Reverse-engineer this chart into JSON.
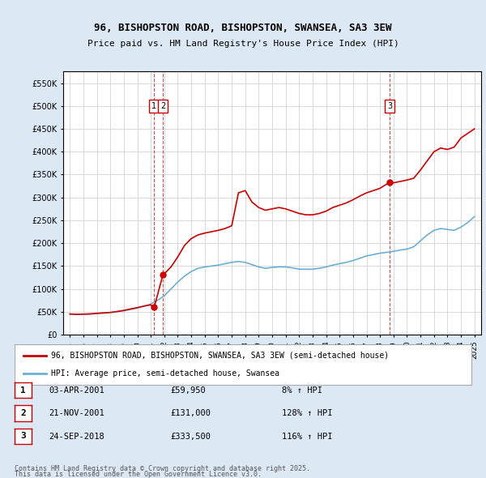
{
  "title_line1": "96, BISHOPSTON ROAD, BISHOPSTON, SWANSEA, SA3 3EW",
  "title_line2": "Price paid vs. HM Land Registry's House Price Index (HPI)",
  "legend_line1": "96, BISHOPSTON ROAD, BISHOPSTON, SWANSEA, SA3 3EW (semi-detached house)",
  "legend_line2": "HPI: Average price, semi-detached house, Swansea",
  "footer_line1": "Contains HM Land Registry data © Crown copyright and database right 2025.",
  "footer_line2": "This data is licensed under the Open Government Licence v3.0.",
  "transactions": [
    {
      "label": "1",
      "date": "03-APR-2001",
      "price": 59950,
      "pct": "8% ↑ HPI",
      "x": 2001.25
    },
    {
      "label": "2",
      "date": "21-NOV-2001",
      "price": 131000,
      "pct": "128% ↑ HPI",
      "x": 2001.9
    },
    {
      "label": "3",
      "date": "24-SEP-2018",
      "price": 333500,
      "pct": "116% ↑ HPI",
      "x": 2018.73
    }
  ],
  "hpi_color": "#6dafd4",
  "price_color": "#cc0000",
  "background_color": "#dce9f5",
  "plot_bg_color": "#ffffff",
  "ylim": [
    0,
    575000
  ],
  "yticks": [
    0,
    50000,
    100000,
    150000,
    200000,
    250000,
    300000,
    350000,
    400000,
    450000,
    500000,
    550000
  ],
  "xlim_start": 1994.5,
  "xlim_end": 2025.5,
  "xticks": [
    1995,
    1996,
    1997,
    1998,
    1999,
    2000,
    2001,
    2002,
    2003,
    2004,
    2005,
    2006,
    2007,
    2008,
    2009,
    2010,
    2011,
    2012,
    2013,
    2014,
    2015,
    2016,
    2017,
    2018,
    2019,
    2020,
    2021,
    2022,
    2023,
    2024,
    2025
  ]
}
